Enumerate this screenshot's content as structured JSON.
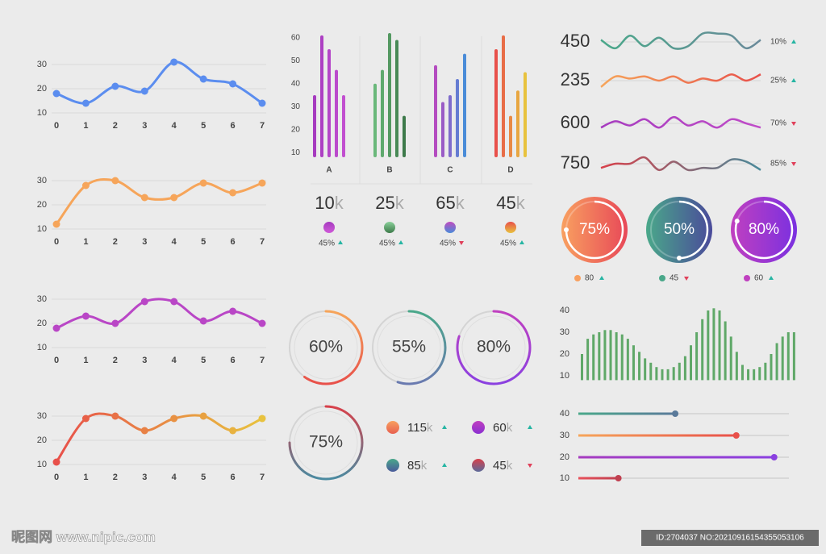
{
  "chart_data": [
    {
      "type": "line",
      "color": "#5b8def",
      "x": [
        0,
        1,
        2,
        3,
        4,
        5,
        6,
        7
      ],
      "values": [
        18,
        14,
        21,
        19,
        31,
        24,
        22,
        14
      ],
      "xlim": [
        0,
        7
      ],
      "xticks": [
        0,
        1,
        2,
        3,
        4,
        5,
        6,
        7
      ],
      "ylim": [
        10,
        33
      ],
      "yticks": [
        10,
        20,
        30
      ],
      "grid": true
    },
    {
      "type": "line",
      "color": "#f6a55a",
      "x": [
        0,
        1,
        2,
        3,
        4,
        5,
        6,
        7
      ],
      "values": [
        12,
        28,
        30,
        23,
        23,
        29,
        25,
        29
      ],
      "xlim": [
        0,
        7
      ],
      "xticks": [
        0,
        1,
        2,
        3,
        4,
        5,
        6,
        7
      ],
      "ylim": [
        10,
        33
      ],
      "yticks": [
        10,
        20,
        30
      ],
      "grid": true
    },
    {
      "type": "line",
      "color": "#b946c6",
      "x": [
        0,
        1,
        2,
        3,
        4,
        5,
        6,
        7
      ],
      "values": [
        18,
        23,
        20,
        29,
        29,
        21,
        25,
        20
      ],
      "xlim": [
        0,
        7
      ],
      "xticks": [
        0,
        1,
        2,
        3,
        4,
        5,
        6,
        7
      ],
      "ylim": [
        10,
        33
      ],
      "yticks": [
        10,
        20,
        30
      ],
      "grid": true
    },
    {
      "type": "line",
      "color": "#e8504a",
      "color2": "#e8c23e",
      "x": [
        0,
        1,
        2,
        3,
        4,
        5,
        6,
        7
      ],
      "values": [
        11,
        29,
        30,
        24,
        29,
        30,
        24,
        29
      ],
      "xlim": [
        0,
        7
      ],
      "xticks": [
        0,
        1,
        2,
        3,
        4,
        5,
        6,
        7
      ],
      "ylim": [
        10,
        33
      ],
      "yticks": [
        10,
        20,
        30
      ],
      "grid": true
    },
    {
      "type": "grouped-bar",
      "ylim": [
        8,
        62
      ],
      "yticks": [
        10,
        20,
        30,
        40,
        50,
        60
      ],
      "groups": [
        {
          "name": "A",
          "colors": [
            "#a63bbf",
            "#c24fd0"
          ],
          "values": [
            35,
            61,
            55,
            46,
            35
          ]
        },
        {
          "name": "B",
          "colors": [
            "#6ab87a",
            "#3d7a4a"
          ],
          "values": [
            40,
            46,
            62,
            59,
            26
          ]
        },
        {
          "name": "C",
          "colors": [
            "#b44cc0",
            "#4a8cd8"
          ],
          "values": [
            48,
            32,
            35,
            42,
            53
          ]
        },
        {
          "name": "D",
          "colors": [
            "#e8504a",
            "#e8c23e"
          ],
          "values": [
            55,
            61,
            26,
            37,
            45
          ]
        }
      ]
    },
    {
      "type": "stat-row",
      "items": [
        {
          "value": 10,
          "unit": "k",
          "change": "45%",
          "trend": "up",
          "colors": [
            "#a63bbf",
            "#d05ad8"
          ]
        },
        {
          "value": 25,
          "unit": "k",
          "change": "45%",
          "trend": "up",
          "colors": [
            "#8ad09a",
            "#3d7a4a"
          ]
        },
        {
          "value": 65,
          "unit": "k",
          "change": "45%",
          "trend": "down",
          "colors": [
            "#c04cc0",
            "#4a8cd8"
          ]
        },
        {
          "value": 45,
          "unit": "k",
          "change": "45%",
          "trend": "up",
          "colors": [
            "#e8504a",
            "#e8c23e"
          ]
        }
      ]
    },
    {
      "type": "sparklines",
      "ylim": [
        0,
        10
      ],
      "series": [
        {
          "name": "450",
          "change": "10%",
          "trend": "up",
          "colors": [
            "#4aa88a",
            "#6a8a9a"
          ],
          "values": [
            6,
            2,
            8,
            3,
            7,
            2,
            3,
            9,
            9,
            8,
            2,
            6
          ]
        },
        {
          "name": "235",
          "change": "25%",
          "trend": "up",
          "colors": [
            "#f6a55a",
            "#e8504a"
          ],
          "values": [
            2,
            7,
            6,
            7,
            5,
            7,
            4,
            6,
            5,
            8,
            5,
            8
          ]
        },
        {
          "name": "600",
          "change": "70%",
          "trend": "down",
          "colors": [
            "#a63bbf",
            "#c04cc8"
          ],
          "values": [
            3,
            6,
            4,
            7,
            3,
            8,
            4,
            6,
            3,
            7,
            5,
            3
          ]
        },
        {
          "name": "750",
          "change": "85%",
          "trend": "down",
          "colors": [
            "#d8404a",
            "#4a8a9a"
          ],
          "values": [
            3,
            5,
            5,
            8,
            2,
            6,
            2,
            3,
            3,
            7,
            6,
            2
          ]
        }
      ]
    },
    {
      "type": "gauge",
      "items": [
        {
          "value": 75,
          "label": "75%",
          "legend": 80,
          "trend": "up",
          "colors": [
            "#f8a060",
            "#e84858"
          ]
        },
        {
          "value": 50,
          "label": "50%",
          "legend": 45,
          "trend": "down",
          "colors": [
            "#4aa88a",
            "#4a4a9a"
          ]
        },
        {
          "value": 80,
          "label": "80%",
          "legend": 60,
          "trend": "up",
          "colors": [
            "#c040c0",
            "#7a30e0"
          ]
        }
      ]
    },
    {
      "type": "ring",
      "items": [
        {
          "value": 60,
          "label": "60%",
          "colors": [
            "#f6a55a",
            "#e8504a"
          ]
        },
        {
          "value": 55,
          "label": "55%",
          "colors": [
            "#4aa88a",
            "#6a7ab0"
          ]
        },
        {
          "value": 80,
          "label": "80%",
          "colors": [
            "#c040c0",
            "#8a40e0"
          ]
        },
        {
          "value": 75,
          "label": "75%",
          "colors": [
            "#d8404a",
            "#4a8aa0"
          ]
        }
      ]
    },
    {
      "type": "stat-legend",
      "items": [
        {
          "value": 115,
          "unit": "k",
          "trend": "up",
          "colors": [
            "#f8a060",
            "#e86050"
          ]
        },
        {
          "value": 60,
          "unit": "k",
          "trend": "up",
          "colors": [
            "#c040c0",
            "#8a30d0"
          ]
        },
        {
          "value": 85,
          "unit": "k",
          "trend": "up",
          "colors": [
            "#4aa88a",
            "#4a5a9a"
          ]
        },
        {
          "value": 45,
          "unit": "k",
          "trend": "down",
          "colors": [
            "#d8404a",
            "#5a6a9a"
          ]
        }
      ]
    },
    {
      "type": "bar",
      "color": "#5fa868",
      "ylim": [
        8,
        43
      ],
      "yticks": [
        10,
        20,
        30,
        40
      ],
      "values": [
        20,
        27,
        29,
        30,
        31,
        31,
        30,
        29,
        27,
        24,
        21,
        18,
        16,
        14,
        13,
        13,
        14,
        16,
        19,
        24,
        30,
        36,
        40,
        41,
        40,
        35,
        28,
        21,
        15,
        13,
        13,
        14,
        16,
        20,
        25,
        28,
        30,
        30
      ]
    },
    {
      "type": "slider",
      "xlim": [
        0,
        100
      ],
      "categories": [
        "40",
        "30",
        "20",
        "10"
      ],
      "values": [
        46,
        75,
        93,
        19
      ],
      "colors": [
        [
          "#4aa88a",
          "#5a7a9a"
        ],
        [
          "#f6a55a",
          "#e8504a"
        ],
        [
          "#a63bbf",
          "#8a40e0"
        ],
        [
          "#e8505a",
          "#c04050"
        ]
      ]
    }
  ],
  "footer": {
    "watermark": "昵图网 www.nipic.com",
    "id": "ID:2704037 NO:20210916154355053106"
  }
}
